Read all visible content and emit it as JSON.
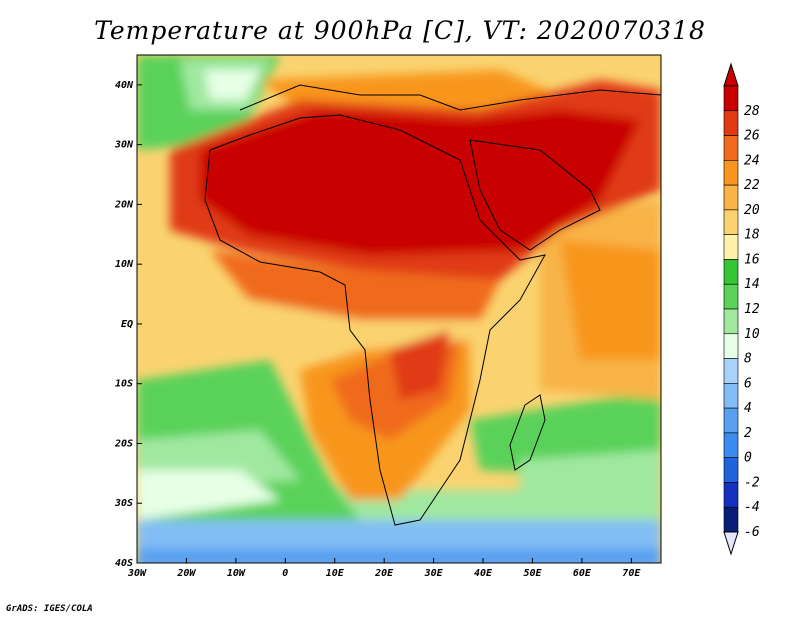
{
  "title": "Temperature at 900hPa [C], VT: 2020070318",
  "credit": "GrADS: IGES/COLA",
  "map": {
    "variable": "Temperature at 900hPa",
    "units": "C",
    "valid_time": "2020070318",
    "lon_range": [
      -30,
      76
    ],
    "lat_range": [
      -40,
      45
    ],
    "lon_ticks": [
      "30W",
      "20W",
      "10W",
      "0",
      "10E",
      "20E",
      "30E",
      "40E",
      "50E",
      "60E",
      "70E"
    ],
    "lat_ticks": [
      "40N",
      "30N",
      "20N",
      "10N",
      "EQ",
      "10S",
      "20S",
      "30S",
      "40S"
    ]
  },
  "colorbar": {
    "labels": [
      "28",
      "26",
      "24",
      "22",
      "20",
      "18",
      "16",
      "14",
      "12",
      "10",
      "8",
      "6",
      "4",
      "2",
      "0",
      "-2",
      "-4",
      "-6"
    ],
    "colors": [
      "#c80000",
      "#e03a12",
      "#f06a1e",
      "#f8961e",
      "#f8b446",
      "#fad370",
      "#fff2a8",
      "#34c634",
      "#5ad25a",
      "#a0e8a0",
      "#e6ffe6",
      "#a8d2fa",
      "#82bef5",
      "#5aa0f0",
      "#3c8cf0",
      "#1e64dc",
      "#1432be",
      "#0a1e78"
    ],
    "over_color": "#c80000",
    "under_color": "#e6e6ff"
  }
}
